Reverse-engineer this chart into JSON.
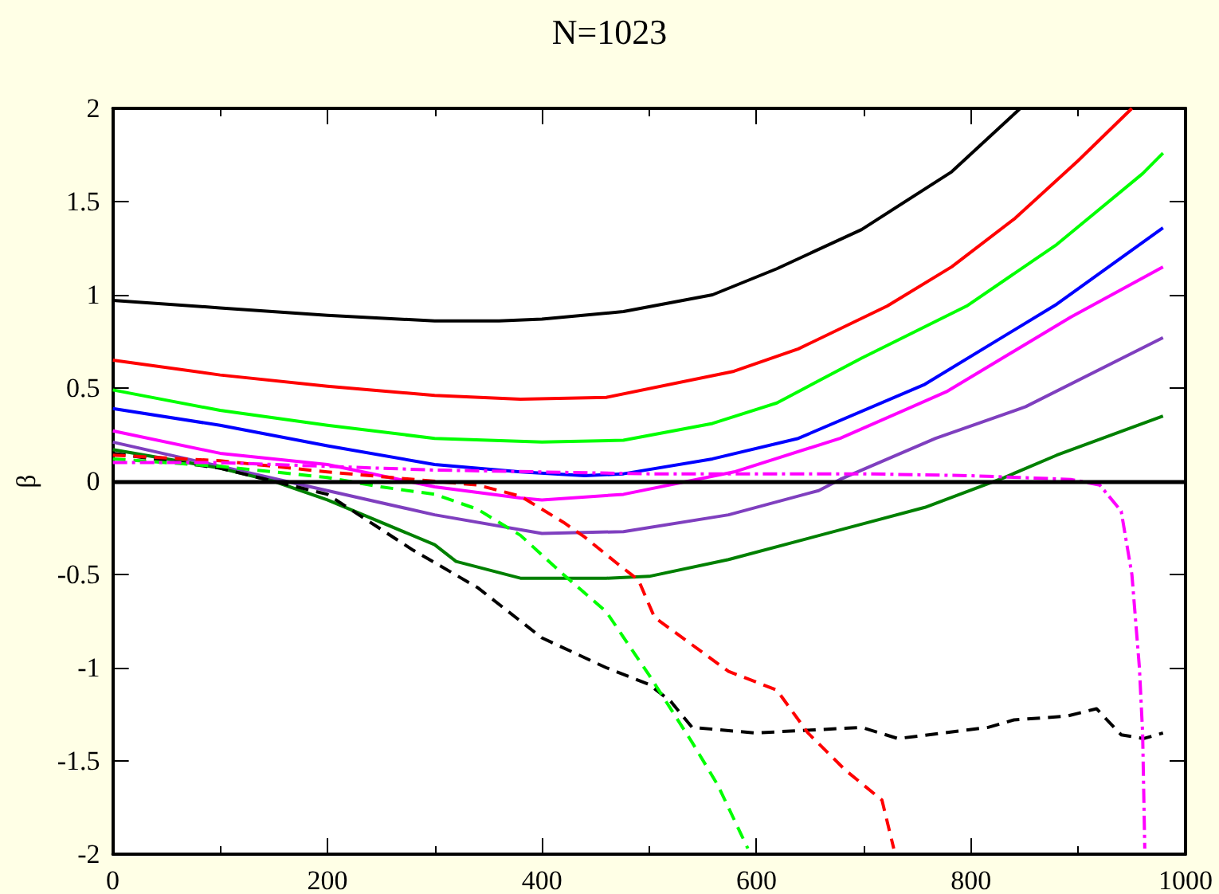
{
  "chart_data": {
    "type": "line",
    "title": "N=1023",
    "ylabel": "β",
    "xlim": [
      0,
      1000
    ],
    "xticks": [
      0,
      200,
      400,
      600,
      800,
      1000
    ],
    "ylim": [
      -2,
      2
    ],
    "yticks": [
      -2,
      -1.5,
      -1,
      -0.5,
      0,
      0.5,
      1,
      1.5,
      2
    ],
    "grid": false,
    "legend": false,
    "ref_lines": [
      {
        "axis": "y",
        "value": 0,
        "color": "#000000"
      }
    ],
    "series": [
      {
        "color": "#000000",
        "line_style": "solid",
        "x": [
          0,
          100,
          200,
          300,
          360,
          400,
          476,
          559,
          619,
          698,
          782,
          846
        ],
        "values": [
          0.97,
          0.93,
          0.89,
          0.86,
          0.86,
          0.87,
          0.91,
          1.0,
          1.14,
          1.35,
          1.66,
          2.0
        ]
      },
      {
        "color": "#ff0000",
        "line_style": "solid",
        "x": [
          0,
          100,
          200,
          300,
          380,
          460,
          579,
          639,
          722,
          782,
          841,
          900,
          950
        ],
        "values": [
          0.65,
          0.57,
          0.51,
          0.46,
          0.44,
          0.45,
          0.59,
          0.71,
          0.94,
          1.15,
          1.41,
          1.72,
          2.0
        ]
      },
      {
        "color": "#00ff00",
        "line_style": "solid",
        "x": [
          0,
          100,
          200,
          300,
          400,
          476,
          559,
          619,
          698,
          796,
          880,
          960,
          979
        ],
        "values": [
          0.49,
          0.38,
          0.3,
          0.23,
          0.21,
          0.22,
          0.31,
          0.42,
          0.66,
          0.94,
          1.27,
          1.65,
          1.76
        ]
      },
      {
        "color": "#0000ff",
        "line_style": "solid",
        "x": [
          0,
          100,
          200,
          300,
          380,
          440,
          476,
          559,
          639,
          757,
          880,
          979
        ],
        "values": [
          0.39,
          0.3,
          0.19,
          0.09,
          0.05,
          0.03,
          0.04,
          0.12,
          0.23,
          0.52,
          0.95,
          1.36
        ]
      },
      {
        "color": "#ff00ff",
        "line_style": "solid",
        "x": [
          0,
          100,
          200,
          300,
          380,
          400,
          476,
          579,
          678,
          777,
          893,
          979
        ],
        "values": [
          0.27,
          0.15,
          0.09,
          -0.03,
          -0.09,
          -0.1,
          -0.07,
          0.05,
          0.23,
          0.48,
          0.88,
          1.15
        ]
      },
      {
        "color": "#7f3fbf",
        "line_style": "solid",
        "x": [
          0,
          100,
          200,
          300,
          400,
          476,
          574,
          658,
          678,
          767,
          851,
          979
        ],
        "values": [
          0.21,
          0.08,
          -0.05,
          -0.18,
          -0.28,
          -0.27,
          -0.18,
          -0.05,
          0.01,
          0.23,
          0.4,
          0.77
        ]
      },
      {
        "color": "#008000",
        "line_style": "solid",
        "x": [
          0,
          100,
          150,
          200,
          300,
          320,
          380,
          460,
          500,
          574,
          698,
          757,
          831,
          880,
          979
        ],
        "values": [
          0.17,
          0.07,
          0,
          -0.1,
          -0.34,
          -0.43,
          -0.52,
          -0.52,
          -0.51,
          -0.42,
          -0.23,
          -0.14,
          0.02,
          0.14,
          0.35
        ]
      },
      {
        "color": "#000000",
        "line_style": "dashed",
        "x": [
          0,
          100,
          150,
          200,
          280,
          340,
          400,
          460,
          500,
          520,
          540,
          599,
          698,
          732,
          816,
          840,
          889,
          917,
          940,
          961,
          979
        ],
        "values": [
          0.15,
          0.07,
          0,
          -0.07,
          -0.37,
          -0.57,
          -0.84,
          -1.0,
          -1.09,
          -1.18,
          -1.32,
          -1.35,
          -1.32,
          -1.38,
          -1.32,
          -1.28,
          -1.26,
          -1.22,
          -1.36,
          -1.38,
          -1.35
        ]
      },
      {
        "color": "#00ff00",
        "line_style": "dashed",
        "x": [
          0,
          100,
          200,
          250,
          300,
          340,
          380,
          420,
          460,
          480,
          500,
          540,
          564,
          592
        ],
        "values": [
          0.12,
          0.08,
          0.02,
          -0.03,
          -0.07,
          -0.15,
          -0.29,
          -0.5,
          -0.7,
          -0.87,
          -1.04,
          -1.4,
          -1.63,
          -1.97
        ]
      },
      {
        "color": "#ff0000",
        "line_style": "dashed",
        "x": [
          0,
          100,
          200,
          260,
          340,
          380,
          420,
          440,
          470,
          490,
          505,
          574,
          619,
          648,
          683,
          717,
          728
        ],
        "values": [
          0.14,
          0.11,
          0.05,
          0.02,
          -0.02,
          -0.08,
          -0.22,
          -0.3,
          -0.44,
          -0.53,
          -0.73,
          -1.02,
          -1.12,
          -1.35,
          -1.55,
          -1.71,
          -1.97
        ]
      },
      {
        "color": "#ff00ff",
        "line_style": "dashdot",
        "x": [
          0,
          100,
          200,
          300,
          400,
          500,
          600,
          700,
          800,
          893,
          920,
          940,
          950,
          957,
          960,
          962
        ],
        "values": [
          0.1,
          0.1,
          0.08,
          0.06,
          0.05,
          0.04,
          0.04,
          0.04,
          0.03,
          0.01,
          -0.02,
          -0.16,
          -0.5,
          -1.0,
          -1.35,
          -1.97
        ]
      }
    ]
  }
}
